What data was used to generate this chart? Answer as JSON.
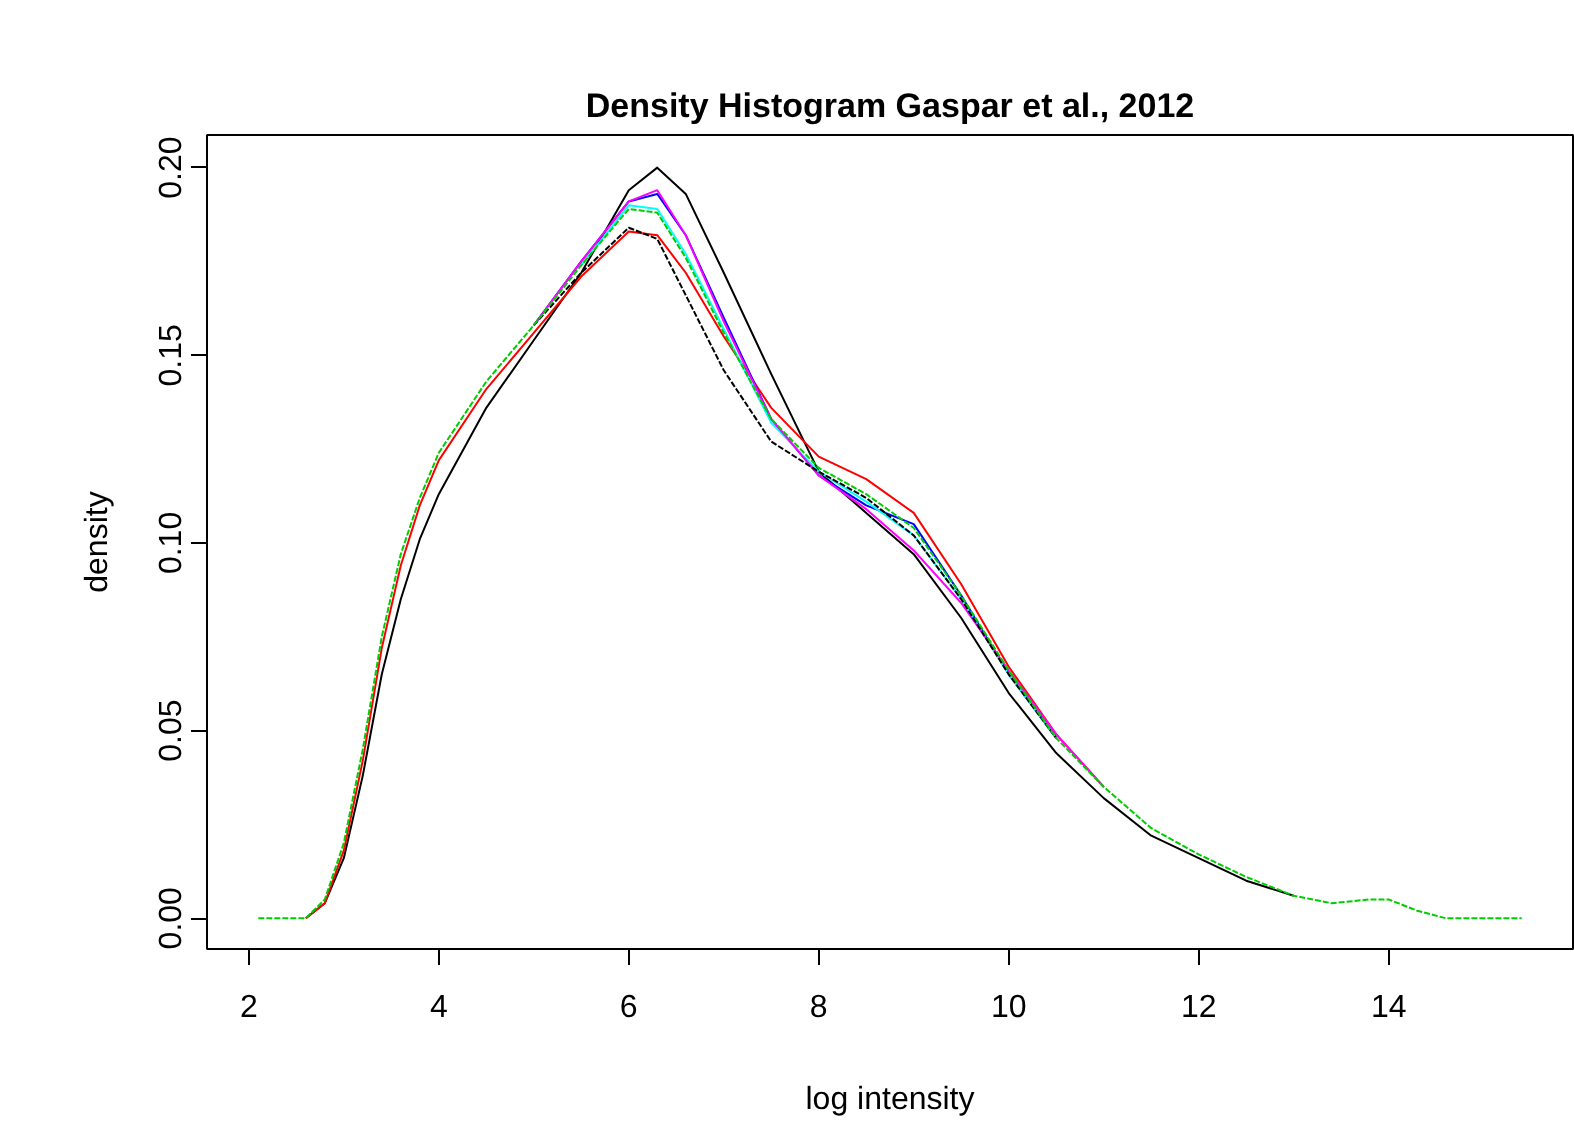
{
  "chart_data": {
    "type": "line",
    "title": "Density Histogram Gaspar et al., 2012",
    "xlabel": "log intensity",
    "ylabel": "density",
    "x": [
      2.1,
      2.6,
      2.8,
      3.0,
      3.2,
      3.4,
      3.6,
      3.8,
      4.0,
      4.5,
      5.0,
      5.5,
      6.0,
      6.3,
      6.6,
      7.0,
      7.5,
      8.0,
      8.5,
      9.0,
      9.5,
      10.0,
      10.5,
      11.0,
      11.5,
      12.0,
      12.5,
      13.0,
      13.4,
      13.8,
      14.0,
      14.3,
      14.6,
      15.4
    ],
    "xlim": [
      1.56,
      15.94
    ],
    "xticks": [
      2,
      4,
      6,
      8,
      10,
      12,
      14
    ],
    "ylim": [
      -0.0082,
      0.2087
    ],
    "yticks": [
      {
        "value": 0,
        "label": "0.00"
      },
      {
        "value": 0.05,
        "label": "0.05"
      },
      {
        "value": 0.1,
        "label": "0.10"
      },
      {
        "value": 0.15,
        "label": "0.15"
      },
      {
        "value": 0.2,
        "label": "0.20"
      }
    ],
    "grid": false,
    "series": [
      {
        "color": "#000000",
        "line_style": "solid",
        "values": [
          null,
          0,
          0.004,
          0.016,
          0.038,
          0.065,
          0.085,
          0.101,
          0.113,
          0.136,
          0.154,
          0.172,
          0.194,
          0.2,
          0.193,
          0.172,
          0.145,
          0.119,
          0.108,
          0.097,
          0.08,
          0.06,
          0.044,
          0.032,
          0.022,
          0.016,
          0.01,
          0.006,
          null,
          null,
          null,
          null,
          null,
          null
        ]
      },
      {
        "color": "#ff0000",
        "line_style": "solid",
        "values": [
          null,
          0,
          0.004,
          0.018,
          0.042,
          0.072,
          0.094,
          0.11,
          0.122,
          0.141,
          0.156,
          0.171,
          0.183,
          0.182,
          0.172,
          0.155,
          0.136,
          0.123,
          0.117,
          0.108,
          0.089,
          0.067,
          0.049,
          0.035,
          null,
          null,
          null,
          null,
          null,
          null,
          null,
          null,
          null,
          null
        ]
      },
      {
        "color": "#0000ff",
        "line_style": "solid",
        "values": [
          null,
          null,
          null,
          null,
          null,
          null,
          null,
          null,
          null,
          null,
          0.158,
          0.175,
          0.191,
          0.193,
          0.182,
          0.16,
          0.133,
          0.118,
          0.11,
          0.105,
          0.086,
          0.065,
          0.048,
          null,
          null,
          null,
          null,
          null,
          null,
          null,
          null,
          null,
          null,
          null
        ]
      },
      {
        "color": "#00ffff",
        "line_style": "solid",
        "values": [
          null,
          null,
          null,
          null,
          null,
          null,
          null,
          null,
          null,
          null,
          null,
          0.174,
          0.19,
          0.189,
          0.177,
          0.157,
          0.132,
          0.119,
          0.111,
          0.102,
          0.085,
          0.065,
          0.048,
          null,
          null,
          null,
          null,
          null,
          null,
          null,
          null,
          null,
          null,
          null
        ]
      },
      {
        "color": "#ff00ff",
        "line_style": "solid",
        "values": [
          null,
          null,
          null,
          null,
          null,
          null,
          null,
          null,
          null,
          null,
          0.158,
          0.175,
          0.191,
          0.194,
          0.182,
          0.159,
          0.133,
          0.118,
          0.109,
          0.098,
          0.084,
          0.066,
          0.049,
          0.035,
          null,
          null,
          null,
          null,
          null,
          null,
          null,
          null,
          null,
          null
        ]
      },
      {
        "color": "#000000",
        "line_style": "dashed",
        "values": [
          null,
          null,
          null,
          null,
          null,
          null,
          null,
          null,
          null,
          null,
          0.158,
          0.172,
          0.184,
          0.181,
          0.166,
          0.146,
          0.127,
          0.119,
          0.112,
          0.102,
          0.085,
          0.065,
          0.048,
          null,
          null,
          null,
          null,
          null,
          null,
          null,
          null,
          null,
          null,
          null
        ]
      },
      {
        "color": "#00cd00",
        "line_style": "dashed",
        "values": [
          0,
          0,
          0.005,
          0.02,
          0.045,
          0.075,
          0.097,
          0.112,
          0.124,
          0.143,
          0.158,
          0.174,
          0.189,
          0.188,
          0.176,
          0.156,
          0.133,
          0.12,
          0.113,
          0.104,
          0.086,
          0.066,
          0.048,
          0.035,
          0.024,
          0.017,
          0.011,
          0.006,
          0.004,
          0.005,
          0.005,
          0.002,
          0,
          0
        ]
      }
    ]
  }
}
